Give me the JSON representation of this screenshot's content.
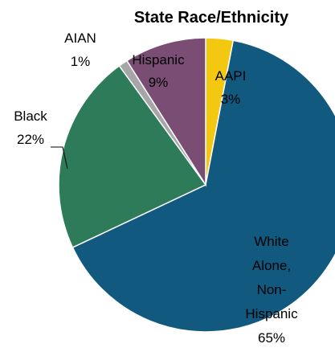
{
  "chart_data": {
    "type": "pie",
    "title": "State Race/Ethnicity",
    "slices": [
      {
        "name": "AAPI",
        "value": 3,
        "value_label": "3%",
        "color": "#f2c811"
      },
      {
        "name": "White Alone, Non-Hispanic",
        "value": 65,
        "value_label": "65%",
        "color": "#12597f"
      },
      {
        "name": "Black",
        "value": 22,
        "value_label": "22%",
        "color": "#2e7b5a"
      },
      {
        "name": "AIAN",
        "value": 1,
        "value_label": "1%",
        "color": "#a6a6a6"
      },
      {
        "name": "Hispanic",
        "value": 9,
        "value_label": "9%",
        "color": "#7a4e74"
      }
    ],
    "start": "12 o'clock, clockwise",
    "legend": "none (data labels with category name and percent)"
  }
}
